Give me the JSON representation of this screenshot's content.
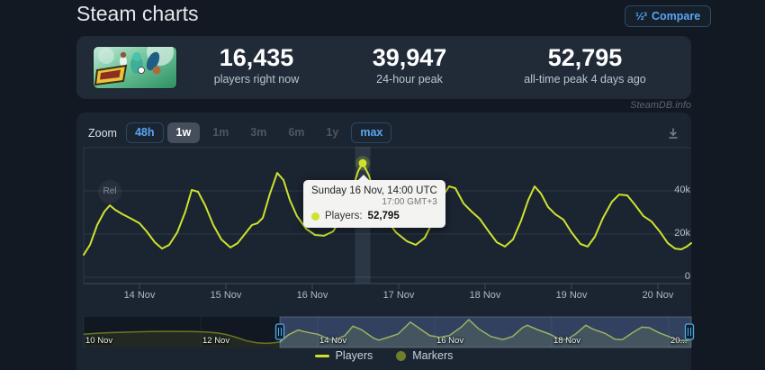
{
  "header": {
    "title": "Steam charts",
    "compare": {
      "icon": "½³",
      "label": "Compare"
    }
  },
  "stats": [
    {
      "value": "16,435",
      "label": "players right now"
    },
    {
      "value": "39,947",
      "label": "24-hour peak"
    },
    {
      "value": "52,795",
      "label": "all-time peak 4 days ago"
    }
  ],
  "watermark": "SteamDB.info",
  "toolbar": {
    "zoom_label": "Zoom",
    "buttons": [
      {
        "label": "48h",
        "state": "enabled"
      },
      {
        "label": "1w",
        "state": "active"
      },
      {
        "label": "1m",
        "state": "disabled"
      },
      {
        "label": "3m",
        "state": "disabled"
      },
      {
        "label": "6m",
        "state": "disabled"
      },
      {
        "label": "1y",
        "state": "disabled"
      },
      {
        "label": "max",
        "state": "enabled"
      }
    ],
    "download_icon": "download-chart"
  },
  "tooltip": {
    "title": "Sunday 16 Nov, 14:00 UTC",
    "subtitle": "17:00 GMT+3",
    "series_label": "Players:",
    "value": "52,795"
  },
  "legend": {
    "items": [
      {
        "label": "Players",
        "marker": "line",
        "color": "#cde22e"
      },
      {
        "label": "Markers",
        "marker": "circle",
        "color": "#6e7f2b"
      }
    ]
  },
  "chart_data": {
    "type": "line",
    "title": "Steam charts — concurrent players",
    "time_unit": "hours since 10 Nov 00:00 UTC",
    "y_axis": {
      "ticks": [
        {
          "v": 0,
          "label": "0"
        },
        {
          "v": 20000,
          "label": "20k"
        },
        {
          "v": 40000,
          "label": "40k"
        }
      ],
      "grid_values": [
        0,
        20000,
        40000,
        60000
      ],
      "max": 60000
    },
    "x_axis": {
      "ticks": [
        {
          "t": 96,
          "label": "14 Nov"
        },
        {
          "t": 120,
          "label": "15 Nov"
        },
        {
          "t": 144,
          "label": "16 Nov"
        },
        {
          "t": 168,
          "label": "17 Nov"
        },
        {
          "t": 192,
          "label": "18 Nov"
        },
        {
          "t": 216,
          "label": "19 Nov"
        },
        {
          "t": 240,
          "label": "20 Nov"
        }
      ]
    },
    "time_range": {
      "from": 80.5,
      "to": 249.25
    },
    "tooltip_point": {
      "t": 158,
      "players": 52795
    },
    "marker": {
      "label": "Rel",
      "t": 87.75,
      "value": 39600
    },
    "series": [
      {
        "name": "Players",
        "color": "#cde22e",
        "points": [
          [
            80.5,
            10400
          ],
          [
            82.25,
            15000
          ],
          [
            84.25,
            24200
          ],
          [
            86.25,
            30400
          ],
          [
            87.75,
            33300
          ],
          [
            89.25,
            31200
          ],
          [
            91.25,
            29200
          ],
          [
            93.75,
            27100
          ],
          [
            96,
            25000
          ],
          [
            98,
            21200
          ],
          [
            100.25,
            16200
          ],
          [
            102.25,
            13300
          ],
          [
            104.25,
            15000
          ],
          [
            106.5,
            20800
          ],
          [
            108.75,
            30400
          ],
          [
            110.5,
            40400
          ],
          [
            112.25,
            39600
          ],
          [
            114.25,
            33300
          ],
          [
            116.5,
            24200
          ],
          [
            118.75,
            17500
          ],
          [
            121.25,
            13800
          ],
          [
            123.25,
            15800
          ],
          [
            125.25,
            20000
          ],
          [
            127.25,
            24200
          ],
          [
            128.75,
            25000
          ],
          [
            130.25,
            27500
          ],
          [
            132.25,
            38800
          ],
          [
            134.25,
            48300
          ],
          [
            136,
            45000
          ],
          [
            137.75,
            35800
          ],
          [
            139.75,
            28300
          ],
          [
            142.25,
            22500
          ],
          [
            144.75,
            19600
          ],
          [
            147.25,
            19200
          ],
          [
            149.75,
            21200
          ],
          [
            152.25,
            27500
          ],
          [
            154.75,
            38800
          ],
          [
            156.75,
            49200
          ],
          [
            158,
            52795
          ],
          [
            159.75,
            47100
          ],
          [
            161.75,
            35800
          ],
          [
            164.25,
            27500
          ],
          [
            167.25,
            20800
          ],
          [
            170.25,
            16700
          ],
          [
            172.75,
            15000
          ],
          [
            175.25,
            18300
          ],
          [
            177.75,
            26700
          ],
          [
            180.25,
            37500
          ],
          [
            182,
            42100
          ],
          [
            183.75,
            41200
          ],
          [
            186,
            34200
          ],
          [
            188.25,
            30400
          ],
          [
            190.5,
            27100
          ],
          [
            193,
            21200
          ],
          [
            195.25,
            16200
          ],
          [
            197.5,
            14200
          ],
          [
            199.75,
            17500
          ],
          [
            202,
            26200
          ],
          [
            204,
            35800
          ],
          [
            205.75,
            42100
          ],
          [
            207.5,
            38800
          ],
          [
            209.5,
            32500
          ],
          [
            211.5,
            29200
          ],
          [
            213.75,
            26700
          ],
          [
            216,
            20800
          ],
          [
            218.5,
            15400
          ],
          [
            220.5,
            14200
          ],
          [
            222.5,
            18800
          ],
          [
            224.75,
            27500
          ],
          [
            227.25,
            35000
          ],
          [
            229.25,
            38300
          ],
          [
            231.5,
            37900
          ],
          [
            233.75,
            33300
          ],
          [
            236,
            28300
          ],
          [
            238.25,
            25800
          ],
          [
            240.5,
            21200
          ],
          [
            242.75,
            15800
          ],
          [
            244.75,
            13300
          ],
          [
            246.5,
            12900
          ],
          [
            248,
            14200
          ],
          [
            249.25,
            15800
          ]
        ]
      }
    ],
    "navigator": {
      "selected_from": 80.5,
      "selected_to": 249.25,
      "labels": [
        {
          "t": 0,
          "label": "10 Nov"
        },
        {
          "t": 48,
          "label": "12 Nov"
        },
        {
          "t": 96,
          "label": "14 Nov"
        },
        {
          "t": 144,
          "label": "16 Nov"
        },
        {
          "t": 192,
          "label": "18 Nov"
        },
        {
          "t": 240,
          "label": "20..."
        }
      ],
      "points": [
        [
          0,
          25000
        ],
        [
          6,
          27000
        ],
        [
          12,
          28200
        ],
        [
          20,
          29500
        ],
        [
          28,
          30200
        ],
        [
          36,
          30500
        ],
        [
          44,
          30200
        ],
        [
          50,
          29400
        ],
        [
          55,
          27500
        ],
        [
          59,
          24000
        ],
        [
          63,
          18500
        ],
        [
          67,
          12500
        ],
        [
          71,
          9000
        ],
        [
          75,
          7800
        ],
        [
          78,
          8800
        ],
        [
          80.5,
          10400
        ],
        [
          84,
          24000
        ],
        [
          88,
          33000
        ],
        [
          91,
          29500
        ],
        [
          96,
          25000
        ],
        [
          102,
          13500
        ],
        [
          107,
          22000
        ],
        [
          110.5,
          40400
        ],
        [
          114,
          33500
        ],
        [
          119,
          17500
        ],
        [
          121,
          14000
        ],
        [
          125,
          19500
        ],
        [
          129,
          25500
        ],
        [
          134,
          48000
        ],
        [
          137,
          38500
        ],
        [
          142,
          22500
        ],
        [
          146,
          19500
        ],
        [
          150,
          22500
        ],
        [
          155,
          39000
        ],
        [
          158,
          52795
        ],
        [
          162,
          35500
        ],
        [
          167,
          21000
        ],
        [
          172,
          15000
        ],
        [
          176,
          21000
        ],
        [
          180,
          37500
        ],
        [
          182,
          42000
        ],
        [
          186,
          34000
        ],
        [
          191,
          25500
        ],
        [
          195,
          16500
        ],
        [
          198,
          14500
        ],
        [
          202,
          26000
        ],
        [
          206,
          42000
        ],
        [
          209,
          34500
        ],
        [
          214,
          26500
        ],
        [
          218,
          15500
        ],
        [
          221,
          15000
        ],
        [
          225,
          27500
        ],
        [
          229,
          38500
        ],
        [
          232,
          37500
        ],
        [
          236,
          28000
        ],
        [
          240,
          21000
        ],
        [
          244,
          13500
        ],
        [
          247,
          13000
        ],
        [
          249.25,
          15800
        ]
      ]
    }
  }
}
